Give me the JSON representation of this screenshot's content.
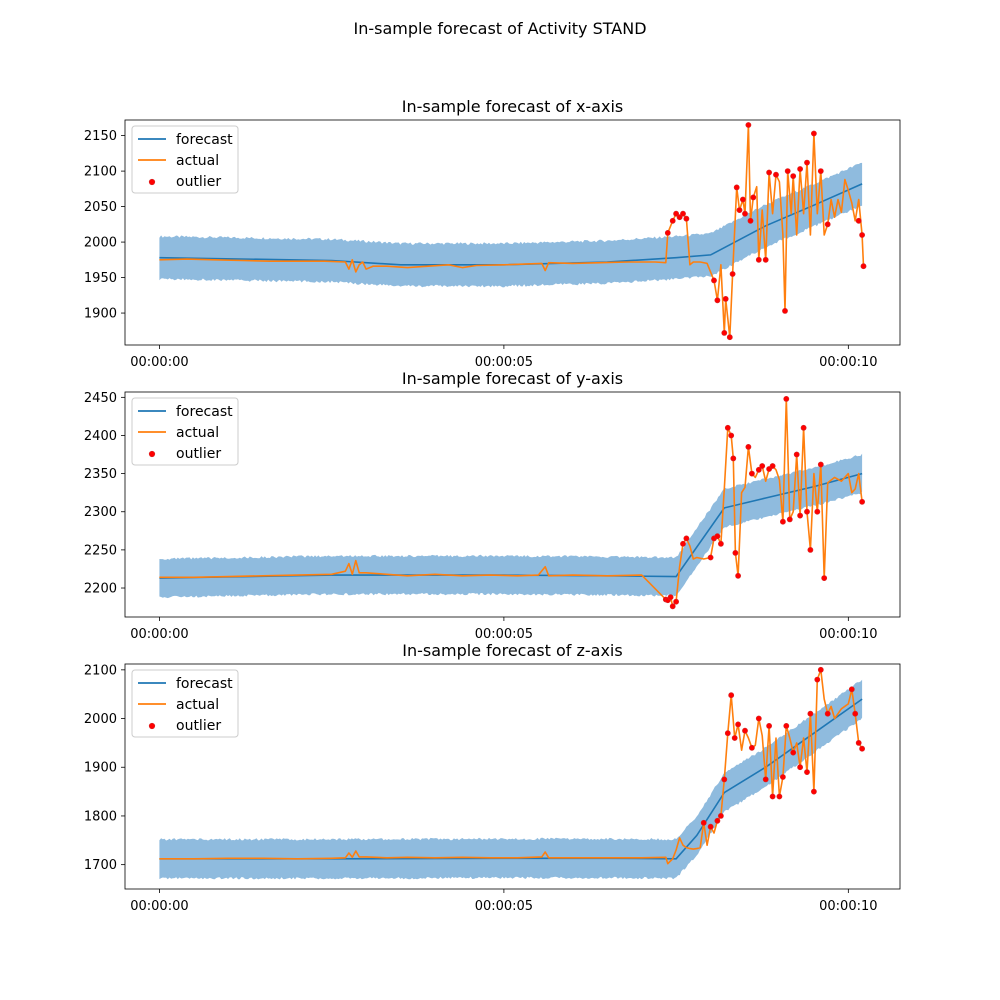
{
  "figure_title": "In-sample forecast of Activity STAND",
  "legend_entries": [
    "forecast",
    "actual",
    "outlier"
  ],
  "colors": {
    "forecast": "#1f77b4",
    "actual": "#ff7f0e",
    "band": "#8fbbde",
    "outlier": "#ff0000",
    "outlier_edge": "#d62728"
  },
  "chart_data": [
    {
      "type": "line",
      "title": "In-sample forecast of x-axis",
      "xlabel": "",
      "ylabel": "",
      "x_unit": "seconds",
      "xlim": [
        -0.5,
        10.75
      ],
      "ylim": [
        1855,
        2172
      ],
      "x_ticks": [
        0,
        5,
        10
      ],
      "x_tick_labels": [
        "00:00:00",
        "00:00:05",
        "00:00:10"
      ],
      "y_ticks": [
        1900,
        1950,
        2000,
        2050,
        2100,
        2150
      ],
      "legend": "top-left",
      "grid": false,
      "band_halfwidth": 30,
      "forecast": {
        "x": [
          0,
          2.5,
          3.5,
          5,
          6.5,
          7.5,
          8.0,
          8.8,
          9.5,
          10.2
        ],
        "y": [
          1978,
          1974,
          1968,
          1968,
          1972,
          1978,
          1982,
          2023,
          2052,
          2082
        ]
      },
      "actual": {
        "x": [
          0,
          0.4,
          0.8,
          1.2,
          1.6,
          2.0,
          2.4,
          2.7,
          2.75,
          2.8,
          2.85,
          2.9,
          2.95,
          3.0,
          3.1,
          3.3,
          3.6,
          3.9,
          4.2,
          4.4,
          4.6,
          5.0,
          5.3,
          5.55,
          5.6,
          5.65,
          6.0,
          6.4,
          6.8,
          7.2,
          7.35,
          7.38,
          7.45,
          7.5,
          7.55,
          7.6,
          7.65,
          7.7,
          7.75,
          7.85,
          7.95,
          8.05,
          8.1,
          8.15,
          8.2,
          8.22,
          8.28,
          8.32,
          8.38,
          8.42,
          8.47,
          8.5,
          8.55,
          8.58,
          8.62,
          8.67,
          8.7,
          8.75,
          8.8,
          8.85,
          8.9,
          8.95,
          9.0,
          9.05,
          9.08,
          9.12,
          9.17,
          9.2,
          9.25,
          9.3,
          9.35,
          9.4,
          9.45,
          9.5,
          9.55,
          9.6,
          9.65,
          9.7,
          9.75,
          9.8,
          9.85,
          9.9,
          9.95,
          10.0,
          10.05,
          10.1,
          10.15,
          10.2,
          10.22
        ],
        "y": [
          1975,
          1976,
          1975,
          1974,
          1973,
          1973,
          1973,
          1972,
          1962,
          1975,
          1958,
          1968,
          1972,
          1962,
          1966,
          1966,
          1964,
          1966,
          1968,
          1964,
          1967,
          1968,
          1969,
          1970,
          1960,
          1971,
          1970,
          1971,
          1972,
          1972,
          1971,
          2013,
          2030,
          2040,
          2035,
          2040,
          2033,
          1968,
          1972,
          1972,
          1970,
          1946,
          1918,
          1968,
          1872,
          1920,
          1866,
          1955,
          2077,
          2045,
          2060,
          2040,
          2165,
          2030,
          2063,
          2078,
          1975,
          2045,
          1975,
          2098,
          2040,
          2095,
          2085,
          2010,
          1903,
          2100,
          2040,
          2093,
          2010,
          2103,
          2040,
          2112,
          2010,
          2153,
          2040,
          2100,
          2010,
          2025,
          2060,
          2035,
          2060,
          2042,
          2088,
          2073,
          2055,
          2030,
          2060,
          2010,
          1966
        ]
      },
      "outliers": {
        "x": [
          7.38,
          7.45,
          7.5,
          7.55,
          7.6,
          7.65,
          8.05,
          8.1,
          8.2,
          8.22,
          8.28,
          8.32,
          8.38,
          8.42,
          8.47,
          8.5,
          8.55,
          8.58,
          8.62,
          8.7,
          8.8,
          8.85,
          8.95,
          9.08,
          9.12,
          9.2,
          9.3,
          9.4,
          9.5,
          9.6,
          9.7,
          10.15,
          10.2,
          10.22
        ],
        "y": [
          2013,
          2030,
          2040,
          2035,
          2040,
          2033,
          1946,
          1918,
          1872,
          1920,
          1866,
          1955,
          2077,
          2045,
          2060,
          2040,
          2165,
          2030,
          2063,
          1975,
          1975,
          2098,
          2095,
          1903,
          2100,
          2093,
          2103,
          2112,
          2153,
          2100,
          2025,
          2030,
          2010,
          1966
        ]
      }
    },
    {
      "type": "line",
      "title": "In-sample forecast of y-axis",
      "xlabel": "",
      "ylabel": "",
      "x_unit": "seconds",
      "xlim": [
        -0.5,
        10.75
      ],
      "ylim": [
        2162,
        2457
      ],
      "x_ticks": [
        0,
        5,
        10
      ],
      "x_tick_labels": [
        "00:00:00",
        "00:00:05",
        "00:00:10"
      ],
      "y_ticks": [
        2200,
        2250,
        2300,
        2350,
        2400,
        2450
      ],
      "legend": "top-left",
      "grid": false,
      "band_halfwidth": 25,
      "forecast": {
        "x": [
          0,
          2.5,
          5,
          6.5,
          7.5,
          8.2,
          8.8,
          9.5,
          10.2
        ],
        "y": [
          2213,
          2217,
          2217,
          2216,
          2215,
          2305,
          2318,
          2333,
          2350
        ]
      },
      "actual": {
        "x": [
          0,
          0.5,
          1.0,
          1.5,
          2.0,
          2.5,
          2.7,
          2.75,
          2.8,
          2.85,
          2.9,
          3.0,
          3.3,
          3.6,
          4.0,
          4.4,
          4.8,
          5.2,
          5.5,
          5.6,
          5.65,
          6.0,
          6.5,
          7.0,
          7.35,
          7.38,
          7.42,
          7.45,
          7.5,
          7.55,
          7.6,
          7.65,
          7.7,
          7.75,
          7.8,
          7.9,
          8.0,
          8.05,
          8.1,
          8.15,
          8.2,
          8.25,
          8.3,
          8.33,
          8.36,
          8.4,
          8.45,
          8.5,
          8.55,
          8.6,
          8.65,
          8.7,
          8.75,
          8.8,
          8.85,
          8.9,
          8.95,
          9.0,
          9.05,
          9.1,
          9.15,
          9.2,
          9.25,
          9.3,
          9.35,
          9.4,
          9.45,
          9.5,
          9.55,
          9.6,
          9.65,
          9.7,
          9.8,
          9.9,
          10.0,
          10.05,
          10.1,
          10.15,
          10.2
        ],
        "y": [
          2214,
          2214,
          2215,
          2216,
          2217,
          2218,
          2222,
          2232,
          2218,
          2236,
          2220,
          2220,
          2218,
          2216,
          2218,
          2216,
          2217,
          2216,
          2217,
          2228,
          2216,
          2217,
          2216,
          2217,
          2185,
          2184,
          2188,
          2176,
          2182,
          2228,
          2258,
          2265,
          2255,
          2238,
          2240,
          2238,
          2240,
          2265,
          2268,
          2258,
          2330,
          2410,
          2400,
          2370,
          2246,
          2216,
          2325,
          2332,
          2385,
          2350,
          2345,
          2355,
          2360,
          2340,
          2356,
          2360,
          2355,
          2342,
          2287,
          2448,
          2290,
          2300,
          2375,
          2295,
          2410,
          2300,
          2250,
          2350,
          2300,
          2362,
          2213,
          2338,
          2345,
          2340,
          2350,
          2325,
          2330,
          2350,
          2313
        ]
      },
      "outliers": {
        "x": [
          7.35,
          7.38,
          7.42,
          7.45,
          7.5,
          7.6,
          7.65,
          8.0,
          8.05,
          8.1,
          8.15,
          8.25,
          8.3,
          8.33,
          8.36,
          8.4,
          8.55,
          8.6,
          8.7,
          8.75,
          8.85,
          8.9,
          9.05,
          9.1,
          9.15,
          9.25,
          9.3,
          9.35,
          9.4,
          9.45,
          9.55,
          9.6,
          9.65,
          10.2
        ],
        "y": [
          2185,
          2184,
          2188,
          2176,
          2182,
          2258,
          2265,
          2240,
          2265,
          2268,
          2258,
          2410,
          2400,
          2370,
          2246,
          2216,
          2385,
          2350,
          2355,
          2360,
          2356,
          2360,
          2287,
          2448,
          2290,
          2375,
          2295,
          2410,
          2300,
          2250,
          2300,
          2362,
          2213,
          2313
        ]
      }
    },
    {
      "type": "line",
      "title": "In-sample forecast of z-axis",
      "xlabel": "",
      "ylabel": "",
      "x_unit": "seconds",
      "xlim": [
        -0.5,
        10.75
      ],
      "ylim": [
        1650,
        2112
      ],
      "x_ticks": [
        0,
        5,
        10
      ],
      "x_tick_labels": [
        "00:00:00",
        "00:00:05",
        "00:00:10"
      ],
      "y_ticks": [
        1700,
        1800,
        1900,
        2000,
        2100
      ],
      "legend": "top-left",
      "grid": false,
      "band_halfwidth": 40,
      "forecast": {
        "x": [
          0,
          2.5,
          5,
          6.5,
          7.5,
          7.8,
          8.2,
          8.8,
          9.5,
          10.2
        ],
        "y": [
          1712,
          1712,
          1713,
          1713,
          1712,
          1760,
          1848,
          1900,
          1970,
          2040
        ]
      },
      "actual": {
        "x": [
          0,
          0.5,
          1.0,
          1.5,
          2.0,
          2.5,
          2.7,
          2.75,
          2.8,
          2.85,
          2.9,
          3.0,
          3.3,
          3.6,
          4.0,
          4.4,
          4.8,
          5.2,
          5.55,
          5.6,
          5.65,
          6.0,
          6.5,
          7.0,
          7.35,
          7.38,
          7.45,
          7.5,
          7.55,
          7.6,
          7.65,
          7.7,
          7.75,
          7.8,
          7.85,
          7.9,
          7.95,
          8.0,
          8.05,
          8.1,
          8.15,
          8.2,
          8.25,
          8.3,
          8.35,
          8.4,
          8.45,
          8.5,
          8.55,
          8.6,
          8.65,
          8.7,
          8.75,
          8.8,
          8.85,
          8.9,
          8.95,
          9.0,
          9.05,
          9.1,
          9.15,
          9.2,
          9.25,
          9.3,
          9.35,
          9.4,
          9.45,
          9.5,
          9.55,
          9.6,
          9.65,
          9.7,
          9.75,
          9.8,
          9.9,
          10.0,
          10.05,
          10.1,
          10.15,
          10.2
        ],
        "y": [
          1712,
          1712,
          1713,
          1713,
          1712,
          1713,
          1714,
          1724,
          1715,
          1728,
          1716,
          1716,
          1714,
          1715,
          1714,
          1715,
          1714,
          1714,
          1716,
          1726,
          1714,
          1714,
          1714,
          1714,
          1715,
          1702,
          1712,
          1730,
          1755,
          1740,
          1735,
          1733,
          1732,
          1733,
          1735,
          1786,
          1740,
          1778,
          1765,
          1790,
          1800,
          1875,
          1970,
          2048,
          1960,
          1988,
          1935,
          1975,
          1960,
          1940,
          1945,
          2000,
          1965,
          1875,
          1985,
          1840,
          1960,
          1840,
          1880,
          1985,
          1960,
          1930,
          1950,
          1900,
          1960,
          1890,
          2010,
          1850,
          2080,
          2100,
          2040,
          2010,
          2025,
          2000,
          2020,
          2030,
          2060,
          2010,
          1950,
          1938
        ]
      },
      "outliers": {
        "x": [
          7.9,
          8.0,
          8.1,
          8.15,
          8.2,
          8.25,
          8.3,
          8.35,
          8.4,
          8.5,
          8.6,
          8.7,
          8.8,
          8.85,
          8.9,
          9.0,
          9.05,
          9.1,
          9.2,
          9.3,
          9.4,
          9.45,
          9.5,
          9.55,
          9.6,
          9.7,
          10.05,
          10.1,
          10.15,
          10.2
        ],
        "y": [
          1786,
          1778,
          1790,
          1800,
          1875,
          1970,
          2048,
          1960,
          1988,
          1975,
          1940,
          2000,
          1875,
          1985,
          1840,
          1840,
          1880,
          1985,
          1930,
          1900,
          1890,
          2010,
          1850,
          2080,
          2100,
          2010,
          2060,
          2010,
          1950,
          1938
        ]
      }
    }
  ]
}
